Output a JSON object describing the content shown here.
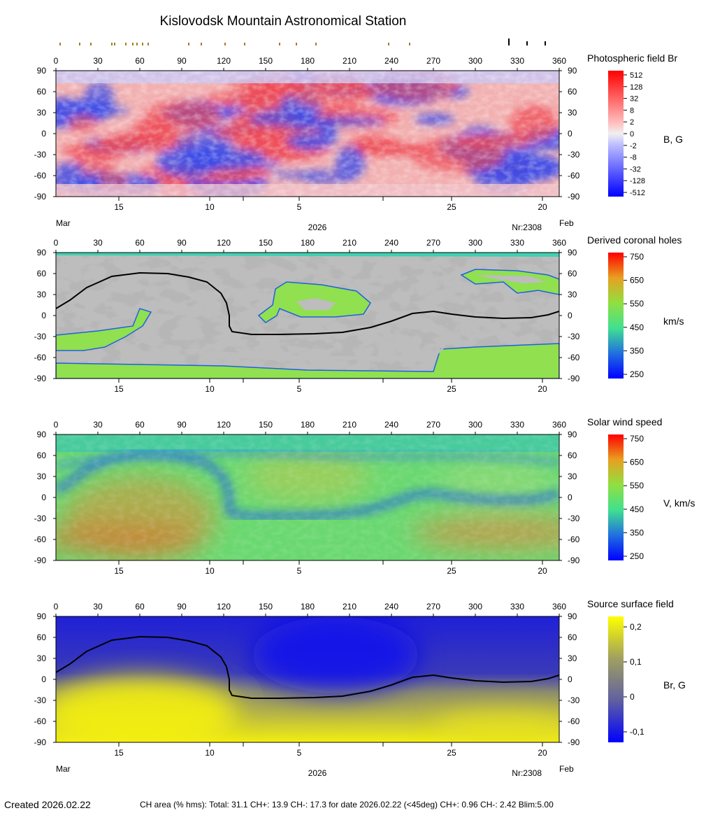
{
  "header": {
    "title": "Kislovodsk Mountain Astronomical Station"
  },
  "footer": {
    "created": "Created  2026.02.22",
    "stats": "CH area (% hms): Total: 31.1 CH+: 13.9   CH-: 17.3 for date 2026.02.22 (<45deg) CH+: 0.96    CH-: 2.42 Blim:5.00"
  },
  "axes": {
    "lon_ticks": [
      "0",
      "30",
      "60",
      "90",
      "120",
      "150",
      "180",
      "210",
      "240",
      "270",
      "300",
      "330",
      "360"
    ],
    "lat_ticks": [
      "90",
      "60",
      "30",
      "0",
      "-30",
      "-60",
      "-90"
    ],
    "date_labels": [
      {
        "text": "15",
        "lon": 45
      },
      {
        "text": "10",
        "lon": 110
      },
      {
        "text": "5",
        "lon": 174
      },
      {
        "text": "25",
        "lon": 283
      },
      {
        "text": "20",
        "lon": 348
      }
    ],
    "date_minor_ticks_lon": [
      134,
      234
    ],
    "left_month": "Mar",
    "right_month": "Feb",
    "year": "2026",
    "rotation": "Nr:2308"
  },
  "observation_marks": {
    "minor_lons": [
      3,
      17,
      25,
      40,
      42,
      50,
      55,
      58,
      62,
      66,
      95,
      104,
      121,
      135,
      160,
      172,
      186,
      238,
      253
    ],
    "major_lons": [
      324,
      337,
      350
    ]
  },
  "chart_data": [
    {
      "type": "heatmap",
      "title": "Photospheric field Br",
      "xlim": [
        0,
        360
      ],
      "ylim": [
        -90,
        90
      ],
      "colorbar": {
        "unit_label": "B, G",
        "ticks": [
          "512",
          "128",
          "32",
          "8",
          "2",
          "0",
          "-2",
          "-8",
          "-32",
          "-128",
          "-512"
        ],
        "colors": [
          "#ff0000",
          "#ff2626",
          "#ff4d4d",
          "#ff7373",
          "#ff9999",
          "#ffc0c0",
          "#f0f0f0",
          "#c0c0ff",
          "#9999ff",
          "#7373ff",
          "#4d4dff",
          "#2626ff",
          "#0000ff"
        ]
      }
    },
    {
      "type": "heatmap",
      "title": "Derived coronal holes",
      "xlim": [
        0,
        360
      ],
      "ylim": [
        -90,
        90
      ],
      "colorbar": {
        "unit_label": "km/s",
        "ticks": [
          "750",
          "650",
          "550",
          "450",
          "350",
          "250"
        ],
        "colors": [
          "#ff0000",
          "#e8a020",
          "#90e040",
          "#40e090",
          "#2070e0",
          "#0000ff"
        ]
      },
      "neutral_line": [
        [
          0,
          10
        ],
        [
          10,
          22
        ],
        [
          22,
          40
        ],
        [
          40,
          56
        ],
        [
          60,
          61
        ],
        [
          80,
          60
        ],
        [
          95,
          55
        ],
        [
          108,
          48
        ],
        [
          118,
          32
        ],
        [
          122,
          18
        ],
        [
          124,
          0
        ],
        [
          124,
          -15
        ],
        [
          126,
          -23
        ],
        [
          140,
          -27
        ],
        [
          160,
          -27
        ],
        [
          185,
          -26
        ],
        [
          205,
          -24
        ],
        [
          225,
          -17
        ],
        [
          240,
          -8
        ],
        [
          255,
          3
        ],
        [
          270,
          6
        ],
        [
          283,
          2
        ],
        [
          300,
          -2
        ],
        [
          320,
          -4
        ],
        [
          340,
          -3
        ],
        [
          352,
          1
        ],
        [
          360,
          6
        ]
      ]
    },
    {
      "type": "heatmap",
      "title": "Solar wind speed",
      "xlim": [
        0,
        360
      ],
      "ylim": [
        -90,
        90
      ],
      "colorbar": {
        "unit_label": "V, km/s",
        "ticks": [
          "750",
          "650",
          "550",
          "450",
          "350",
          "250"
        ],
        "colors": [
          "#ff0000",
          "#e8a020",
          "#90e040",
          "#40e090",
          "#2070e0",
          "#0000ff"
        ]
      }
    },
    {
      "type": "heatmap",
      "title": "Source surface field",
      "xlim": [
        0,
        360
      ],
      "ylim": [
        -90,
        90
      ],
      "colorbar": {
        "unit_label": "Br, G",
        "ticks": [
          "0,2",
          "0,1",
          "0",
          "-0,1"
        ],
        "tick_values": [
          0.2,
          0.1,
          0,
          -0.1
        ],
        "vmin": -0.13,
        "vmax": 0.23,
        "colors": [
          "#ffff00",
          "#a0a060",
          "#6060a0",
          "#0000ff"
        ]
      },
      "neutral_line": [
        [
          0,
          10
        ],
        [
          10,
          22
        ],
        [
          22,
          40
        ],
        [
          40,
          56
        ],
        [
          60,
          61
        ],
        [
          80,
          60
        ],
        [
          95,
          55
        ],
        [
          108,
          48
        ],
        [
          118,
          32
        ],
        [
          122,
          18
        ],
        [
          124,
          0
        ],
        [
          124,
          -15
        ],
        [
          126,
          -23
        ],
        [
          140,
          -27
        ],
        [
          160,
          -27
        ],
        [
          185,
          -26
        ],
        [
          205,
          -24
        ],
        [
          225,
          -17
        ],
        [
          240,
          -8
        ],
        [
          255,
          3
        ],
        [
          270,
          6
        ],
        [
          283,
          2
        ],
        [
          300,
          -2
        ],
        [
          320,
          -4
        ],
        [
          340,
          -3
        ],
        [
          352,
          1
        ],
        [
          360,
          6
        ]
      ]
    }
  ]
}
